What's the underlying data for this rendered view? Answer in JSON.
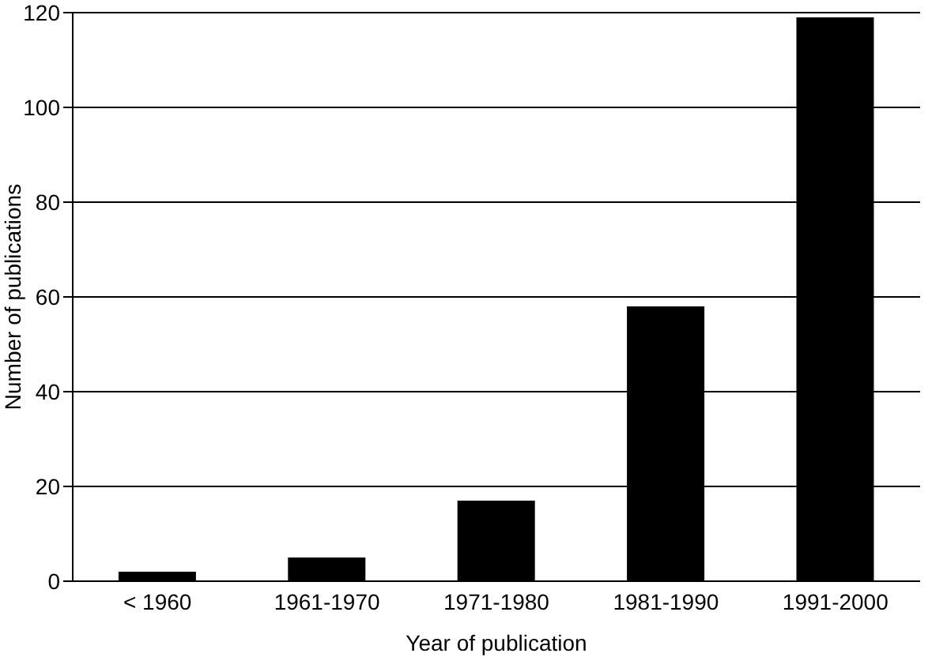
{
  "chart_data": {
    "type": "bar",
    "xlabel": "Year of publication",
    "ylabel": "Number of publications",
    "categories": [
      "< 1960",
      "1961-1970",
      "1971-1980",
      "1981-1990",
      "1991-2000"
    ],
    "values": [
      2,
      5,
      17,
      58,
      119
    ],
    "color": "#000000",
    "ylim": [
      0,
      120
    ],
    "yticks": [
      0,
      20,
      40,
      60,
      80,
      100,
      120
    ],
    "grid": "y"
  }
}
